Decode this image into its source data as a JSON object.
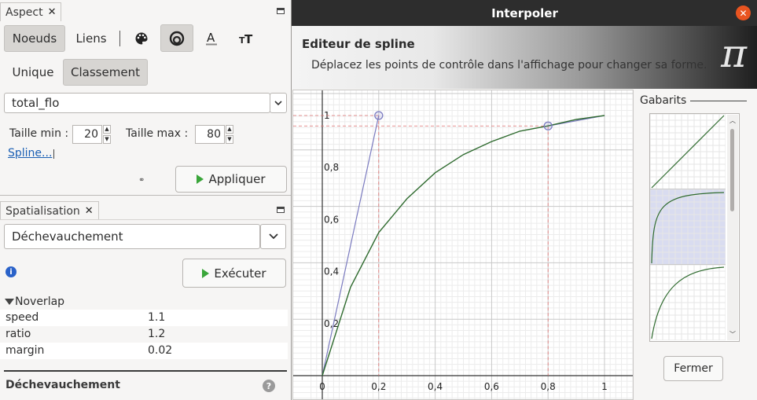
{
  "aspect_panel": {
    "tab_label": "Aspect",
    "toggle_nodes": "Noeuds",
    "toggle_edges": "Liens",
    "tab_unique": "Unique",
    "tab_ranking": "Classement",
    "attribute": "total_flo",
    "size_min_label": "Taille min :",
    "size_min_value": "20",
    "size_max_label": "Taille max :",
    "size_max_value": "80",
    "spline_link": "Spline...",
    "apply_button": "Appliquer"
  },
  "layout_panel": {
    "tab_label": "Spatialisation",
    "algorithm": "Déchevauchement",
    "run_button": "Exécuter",
    "group_label": "Noverlap",
    "properties": [
      {
        "name": "speed",
        "value": "1.1"
      },
      {
        "name": "ratio",
        "value": "1.2"
      },
      {
        "name": "margin",
        "value": "0.02"
      }
    ],
    "footer_title": "Déchevauchement"
  },
  "dialog": {
    "title": "Interpoler",
    "header_title": "Editeur de spline",
    "header_subtitle": "Déplacez les points de contrôle dans l'affichage pour changer sa forme.",
    "templates_label": "Gabarits",
    "close_button": "Fermer"
  },
  "chart_data": {
    "type": "line",
    "title": "",
    "xlabel": "",
    "ylabel": "",
    "xlim": [
      0,
      1
    ],
    "ylim": [
      0,
      1
    ],
    "x_ticks": [
      "0",
      "0,2",
      "0,4",
      "0,6",
      "0,8",
      "1"
    ],
    "y_ticks": [
      "0,2",
      "0,4",
      "0,6",
      "0,8",
      "1"
    ],
    "curve": {
      "x": [
        0,
        0.1,
        0.2,
        0.3,
        0.4,
        0.5,
        0.6,
        0.7,
        0.8,
        0.9,
        1.0
      ],
      "y": [
        0,
        0.34,
        0.55,
        0.68,
        0.78,
        0.85,
        0.9,
        0.94,
        0.96,
        0.985,
        1.0
      ]
    },
    "control_points": [
      {
        "x": 0.2,
        "y": 1.0
      },
      {
        "x": 0.8,
        "y": 0.96
      }
    ],
    "grid": true,
    "colors": {
      "curve": "#2f6b2f",
      "handles": "#7b7bc0",
      "guides": "#e07070"
    }
  }
}
